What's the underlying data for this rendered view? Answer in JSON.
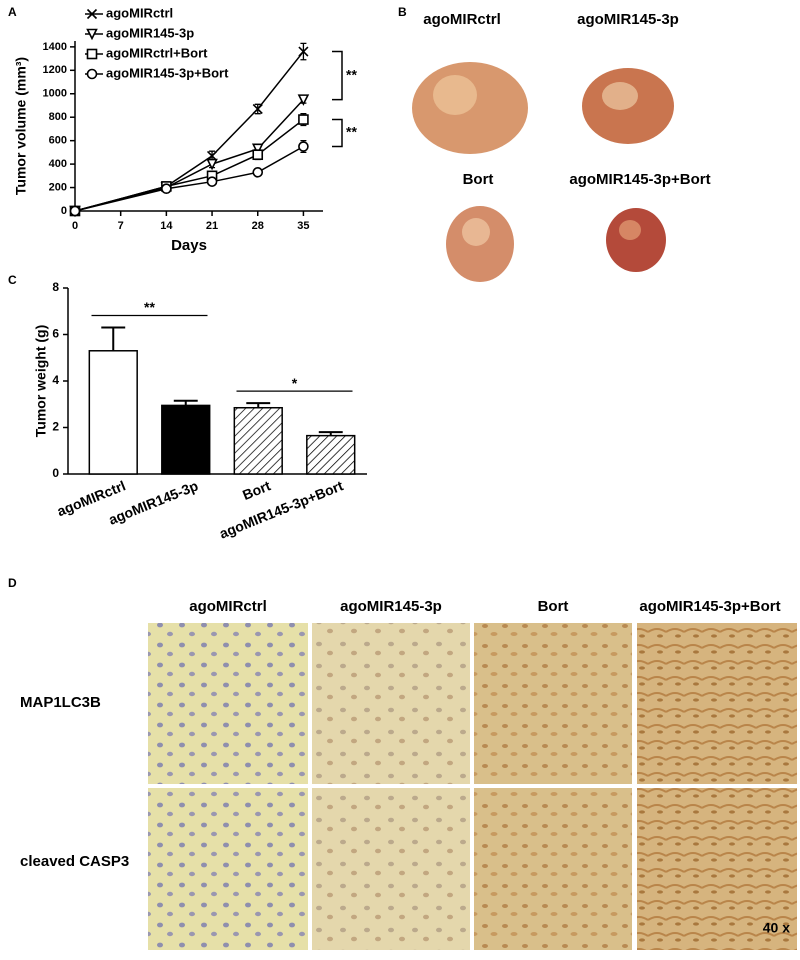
{
  "panel_labels": [
    "A",
    "B",
    "C",
    "D"
  ],
  "chart_data": [
    {
      "type": "line",
      "x_label": "Days",
      "y_label": "Tumor volume (mm³)",
      "x": [
        0,
        14,
        21,
        28,
        35
      ],
      "xlim": [
        0,
        38
      ],
      "xticks": [
        0,
        7,
        14,
        21,
        28,
        35
      ],
      "ylim": [
        0,
        1450
      ],
      "yticks": [
        0,
        200,
        400,
        600,
        800,
        1000,
        1200,
        1400
      ],
      "legend": "upper left",
      "series": [
        {
          "name": "agoMIRctrl",
          "color": "#000000",
          "marker": "x",
          "values": [
            0,
            210,
            470,
            870,
            1360
          ],
          "errors": [
            10,
            20,
            40,
            40,
            70
          ]
        },
        {
          "name": "agoMIR145-3p",
          "color": "#000000",
          "marker": "triangle-down",
          "values": [
            0,
            200,
            400,
            530,
            950
          ],
          "errors": [
            10,
            20,
            30,
            40,
            30
          ]
        },
        {
          "name": "agoMIRctrl+Bort",
          "color": "#000000",
          "marker": "square",
          "values": [
            0,
            210,
            300,
            480,
            780
          ],
          "errors": [
            10,
            20,
            30,
            40,
            50
          ]
        },
        {
          "name": "agoMIR145-3p+Bort",
          "color": "#000000",
          "marker": "circle",
          "values": [
            0,
            190,
            250,
            330,
            550
          ],
          "errors": [
            10,
            20,
            30,
            20,
            50
          ]
        }
      ],
      "annotations": [
        "**",
        "**"
      ]
    },
    {
      "type": "bar",
      "y_label": "Tumor weight (g)",
      "categories": [
        "agoMIRctrl",
        "agoMIR145-3p",
        "Bort",
        "agoMIR145-3p+Bort"
      ],
      "values": [
        5.3,
        2.95,
        2.85,
        1.65
      ],
      "errors": [
        1.0,
        0.2,
        0.2,
        0.15
      ],
      "colors": [
        "#ffffff",
        "#000000",
        "#ffffff",
        "#ffffff"
      ],
      "patterns": [
        "solid",
        "solid",
        "hatched",
        "hatched"
      ],
      "ylim": [
        0,
        8
      ],
      "yticks": [
        0,
        2,
        4,
        6,
        8
      ],
      "annotations": [
        "**",
        "*"
      ]
    }
  ],
  "photos": {
    "labels": [
      "agoMIRctrl",
      "agoMIR145-3p",
      "Bort",
      "agoMIR145-3p+Bort"
    ]
  },
  "staining": {
    "columns": [
      "agoMIRctrl",
      "agoMIR145-3p",
      "Bort",
      "agoMIR145-3p+Bort"
    ],
    "rows": [
      "MAP1LC3B",
      "cleaved CASP3"
    ],
    "magnification": "40 x"
  }
}
